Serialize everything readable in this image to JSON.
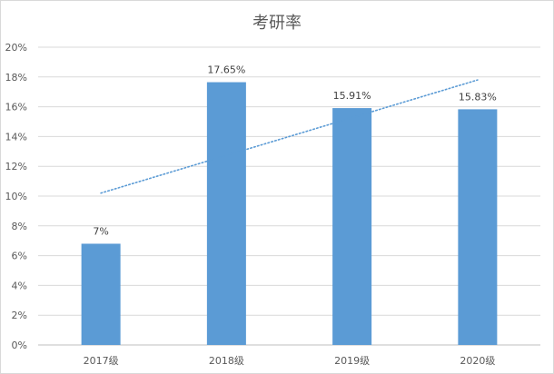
{
  "chart_data": {
    "type": "bar",
    "title": "考研率",
    "xlabel": "",
    "ylabel": "",
    "categories": [
      "2017级",
      "2018级",
      "2019级",
      "2020级"
    ],
    "values": [
      6.8,
      17.65,
      15.91,
      15.83
    ],
    "data_labels": [
      "7%",
      "17.65%",
      "15.91%",
      "15.83%"
    ],
    "ylim": [
      0,
      20
    ],
    "yticks": [
      0,
      2,
      4,
      6,
      8,
      10,
      12,
      14,
      16,
      18,
      20
    ],
    "ytick_labels": [
      "0%",
      "2%",
      "4%",
      "6%",
      "8%",
      "10%",
      "12%",
      "14%",
      "16%",
      "18%",
      "20%"
    ],
    "trendline": {
      "type": "linear",
      "style": "dotted",
      "start": 10.2,
      "end": 17.8
    },
    "grid": true,
    "legend": "none",
    "colors": {
      "bar": "#5b9bd5",
      "trendline": "#5b9bd5",
      "grid": "#d9d9d9"
    }
  }
}
